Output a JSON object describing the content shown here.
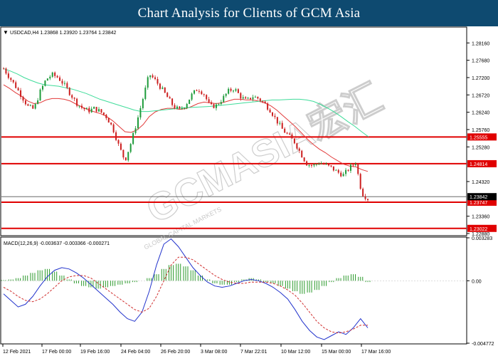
{
  "banner": {
    "title": "Chart Analysis for Clients of GCM Asia"
  },
  "chart_data": [
    {
      "type": "candlestick",
      "symbol_info": "USDCAD,H4  1.23868 1.23920 1.23764 1.23842",
      "ylim": [
        1.2284,
        1.2858
      ],
      "y_ticks": [
        "1.28160",
        "1.27680",
        "1.27200",
        "1.26720",
        "1.26240",
        "1.25760",
        "1.25280",
        "1.24320",
        "1.23360",
        "1.22880"
      ],
      "y_tick_values": [
        1.2816,
        1.2768,
        1.272,
        1.2672,
        1.2624,
        1.2576,
        1.2528,
        1.2432,
        1.2336,
        1.2288
      ],
      "current_price": {
        "label": "1.23842",
        "value": 1.23842
      },
      "levels": [
        {
          "label": "1.25555",
          "value": 1.25555
        },
        {
          "label": "1.24814",
          "value": 1.24814
        },
        {
          "label": "1.23747",
          "value": 1.23747
        },
        {
          "label": "1.23022",
          "value": 1.23022
        }
      ],
      "close_path": [
        1.2745,
        1.272,
        1.2695,
        1.2668,
        1.264,
        1.2632,
        1.268,
        1.2715,
        1.2728,
        1.272,
        1.27,
        1.2675,
        1.265,
        1.2635,
        1.2628,
        1.2635,
        1.2625,
        1.261,
        1.258,
        1.253,
        1.249,
        1.254,
        1.26,
        1.2665,
        1.273,
        1.2712,
        1.269,
        1.2665,
        1.264,
        1.263,
        1.2645,
        1.2672,
        1.269,
        1.2675,
        1.264,
        1.2642,
        1.266,
        1.2682,
        1.269,
        1.2668,
        1.2655,
        1.2668,
        1.2662,
        1.2648,
        1.2628,
        1.26,
        1.2575,
        1.2558,
        1.254,
        1.2508,
        1.248,
        1.2476,
        1.2485,
        1.2478,
        1.247,
        1.2458,
        1.245,
        1.247,
        1.2485,
        1.24,
        1.2384
      ],
      "ma_red": [
        1.27,
        1.269,
        1.2678,
        1.2668,
        1.2655,
        1.2648,
        1.265,
        1.2658,
        1.2662,
        1.2662,
        1.266,
        1.2655,
        1.2646,
        1.2638,
        1.263,
        1.2625,
        1.262,
        1.2612,
        1.26,
        1.2585,
        1.257,
        1.2568,
        1.2575,
        1.259,
        1.2612,
        1.2625,
        1.2632,
        1.2635,
        1.2635,
        1.2632,
        1.2634,
        1.264,
        1.2648,
        1.2652,
        1.265,
        1.2648,
        1.265,
        1.2655,
        1.266,
        1.266,
        1.2658,
        1.2658,
        1.2655,
        1.265,
        1.2642,
        1.263,
        1.2615,
        1.26,
        1.2585,
        1.2568,
        1.255,
        1.2535,
        1.2522,
        1.2512,
        1.25,
        1.249,
        1.248,
        1.2475,
        1.2473,
        1.2465,
        1.246
      ],
      "ma_green": [
        1.2745,
        1.2738,
        1.273,
        1.272,
        1.2712,
        1.2705,
        1.27,
        1.2698,
        1.2696,
        1.2692,
        1.2688,
        1.2682,
        1.2676,
        1.2668,
        1.266,
        1.2654,
        1.2648,
        1.2642,
        1.2636,
        1.263,
        1.2626,
        1.2626,
        1.2628,
        1.263,
        1.2632,
        1.2634,
        1.2636,
        1.2637,
        1.2638,
        1.2639,
        1.264,
        1.2642,
        1.2644,
        1.2646,
        1.2648,
        1.265,
        1.2652,
        1.2654,
        1.2656,
        1.2658,
        1.2658,
        1.2659,
        1.266,
        1.266,
        1.2658,
        1.2654,
        1.2646,
        1.2636,
        1.2625,
        1.2612,
        1.2598,
        1.2585,
        1.257,
        1.2556
      ]
    },
    {
      "type": "macd",
      "label": "MACD(12,26,9) -0.003637 -0.003366 -0.000271",
      "ylim": [
        -0.004772,
        0.003283
      ],
      "y_ticks": [
        "0.003283",
        "0.00",
        "-0.004772"
      ],
      "y_tick_values": [
        0.003283,
        0.0,
        -0.004772
      ],
      "histogram": [
        5e-05,
        0.0001,
        0.0002,
        0.0004,
        0.0006,
        0.0008,
        0.0009,
        0.0007,
        0.0004,
        0.0001,
        -0.0002,
        -0.0004,
        -0.0005,
        -0.0006,
        -0.0005,
        -0.0004,
        -0.0003,
        -0.0002,
        -0.0001,
        0.0,
        0.0002,
        0.0005,
        0.0009,
        0.0012,
        0.0013,
        0.0011,
        0.0008,
        0.0004,
        0.0001,
        -0.0002,
        -0.0003,
        -0.0003,
        -0.0001,
        0.0001,
        0.0002,
        0.0001,
        -0.0001,
        -0.0002,
        -0.0004,
        -0.0006,
        -0.0008,
        -0.001,
        -0.0009,
        -0.0007,
        -0.0004,
        -0.0001,
        0.0002,
        0.0004,
        0.0005,
        0.0003,
        -0.0001
      ],
      "macd_line": [
        -0.001,
        -0.0015,
        -0.002,
        -0.0018,
        -0.0012,
        -0.0004,
        0.0003,
        0.0008,
        0.001,
        0.0009,
        0.0006,
        0.0002,
        -0.0003,
        -0.0008,
        -0.0013,
        -0.0018,
        -0.0024,
        -0.0029,
        -0.0031,
        -0.0024,
        -0.0008,
        0.0012,
        0.0028,
        0.0032,
        0.0026,
        0.0018,
        0.001,
        0.0004,
        -0.0001,
        -0.0004,
        -0.0005,
        -0.0004,
        -0.0002,
        0.0,
        0.0001,
        0.0,
        -0.0002,
        -0.0005,
        -0.0009,
        -0.0014,
        -0.0022,
        -0.0031,
        -0.0038,
        -0.0043,
        -0.0045,
        -0.0042,
        -0.0039,
        -0.0041,
        -0.0036,
        -0.0029,
        -0.0036
      ],
      "signal_line": [
        -0.0005,
        -0.0008,
        -0.0012,
        -0.0015,
        -0.0016,
        -0.0014,
        -0.001,
        -0.0005,
        0.0,
        0.0003,
        0.0004,
        0.0004,
        0.0002,
        -0.0002,
        -0.0006,
        -0.001,
        -0.0014,
        -0.0018,
        -0.0022,
        -0.0024,
        -0.0021,
        -0.0012,
        0.0,
        0.0012,
        0.0018,
        0.0018,
        0.0016,
        0.0012,
        0.0008,
        0.0004,
        0.0001,
        -0.0001,
        -0.0002,
        -0.0002,
        -0.0001,
        -0.0001,
        -0.0001,
        -0.0002,
        -0.0004,
        -0.0007,
        -0.0011,
        -0.0017,
        -0.0024,
        -0.0031,
        -0.0036,
        -0.0039,
        -0.004,
        -0.0039,
        -0.0037,
        -0.0034,
        -0.0034
      ]
    }
  ],
  "x_ticks": [
    "12 Feb 2021",
    "17 Feb 00:00",
    "19 Feb 16:00",
    "24 Feb 04:00",
    "26 Feb 20:00",
    "3 Mar 08:00",
    "7 Mar 22:01",
    "10 Mar 12:00",
    "15 Mar 00:00",
    "17 Mar 16:00"
  ],
  "watermark": {
    "text": "GCMASIA宏汇",
    "subtext": "GLOBAL CAPITAL MARKETS"
  },
  "colors": {
    "banner": "#0e4a70",
    "bull": "#1d9b3a",
    "bear": "#cc1f1f",
    "level": "#e00000",
    "ma_red": "#e23b3b",
    "ma_green": "#3fdc9a",
    "macd": "#2233cc",
    "signal": "#d03030",
    "histogram": "#2b9a2b"
  }
}
